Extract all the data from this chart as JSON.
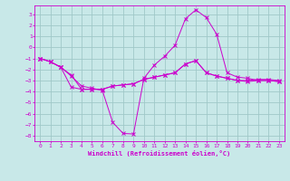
{
  "xlabel": "Windchill (Refroidissement éolien,°C)",
  "background_color": "#c8e8e8",
  "grid_color": "#a0c8c8",
  "line_color": "#cc00cc",
  "xlim": [
    -0.5,
    23.5
  ],
  "ylim": [
    -8.5,
    3.8
  ],
  "xtick_vals": [
    0,
    1,
    2,
    3,
    4,
    5,
    6,
    7,
    8,
    9,
    10,
    11,
    12,
    13,
    14,
    15,
    16,
    17,
    18,
    19,
    20,
    21,
    22,
    23
  ],
  "ytick_vals": [
    -8,
    -7,
    -6,
    -5,
    -4,
    -3,
    -2,
    -1,
    0,
    1,
    2,
    3
  ],
  "series": [
    {
      "x": [
        0,
        1,
        2,
        3,
        4,
        5,
        6,
        7,
        8,
        9,
        10,
        11,
        12,
        13,
        14,
        15,
        16,
        17,
        18,
        19,
        20,
        21,
        22,
        23
      ],
      "y": [
        -1.0,
        -1.3,
        -1.8,
        -2.6,
        -3.5,
        -3.7,
        -3.9,
        -6.8,
        -7.8,
        -7.85,
        -2.8,
        -1.6,
        -0.8,
        0.2,
        2.6,
        3.4,
        2.7,
        1.2,
        -2.3,
        -2.7,
        -2.8,
        -3.0,
        -3.0,
        -3.1
      ]
    },
    {
      "x": [
        0,
        1,
        2,
        3,
        4,
        5,
        6,
        7,
        8,
        9,
        10,
        11,
        12,
        13,
        14,
        15,
        16,
        17,
        18,
        19,
        20,
        21,
        22,
        23
      ],
      "y": [
        -1.0,
        -1.3,
        -1.8,
        -3.6,
        -3.8,
        -3.8,
        -3.8,
        -3.5,
        -3.4,
        -3.3,
        -2.9,
        -2.7,
        -2.5,
        -2.3,
        -1.5,
        -1.2,
        -2.3,
        -2.6,
        -2.8,
        -3.0,
        -3.0,
        -2.9,
        -2.9,
        -3.0
      ]
    },
    {
      "x": [
        0,
        1,
        2,
        3,
        4,
        5,
        6,
        7,
        8,
        9,
        10,
        11,
        12,
        13,
        14,
        15,
        16,
        17,
        18,
        19,
        20,
        21,
        22,
        23
      ],
      "y": [
        -1.0,
        -1.3,
        -1.8,
        -2.5,
        -3.8,
        -3.8,
        -3.8,
        -3.5,
        -3.4,
        -3.3,
        -2.9,
        -2.7,
        -2.5,
        -2.3,
        -1.5,
        -1.2,
        -2.3,
        -2.6,
        -2.8,
        -3.0,
        -3.1,
        -3.0,
        -3.0,
        -3.1
      ]
    }
  ]
}
